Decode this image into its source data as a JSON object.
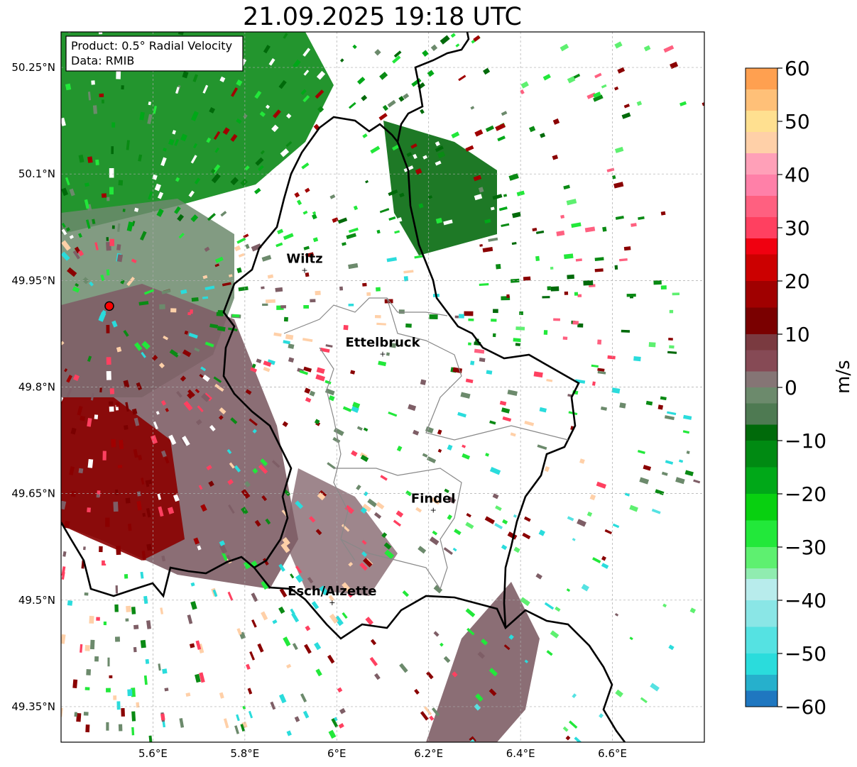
{
  "title": "21.09.2025 19:18 UTC",
  "info_box": {
    "product": "Product: 0.5° Radial Velocity",
    "data": "Data: RMIB"
  },
  "map": {
    "lon_range": [
      5.4,
      6.8
    ],
    "lat_range": [
      49.3,
      50.3
    ],
    "lat_ticks": [
      {
        "value": 50.25,
        "label": "50.25°N"
      },
      {
        "value": 50.1,
        "label": "50.1°N"
      },
      {
        "value": 49.95,
        "label": "49.95°N"
      },
      {
        "value": 49.8,
        "label": "49.8°N"
      },
      {
        "value": 49.65,
        "label": "49.65°N"
      },
      {
        "value": 49.5,
        "label": "49.5°N"
      },
      {
        "value": 49.35,
        "label": "49.35°N"
      }
    ],
    "lon_ticks": [
      {
        "value": 5.6,
        "label": "5.6°E"
      },
      {
        "value": 5.8,
        "label": "5.8°E"
      },
      {
        "value": 6.0,
        "label": "6°E"
      },
      {
        "value": 6.2,
        "label": "6.2°E"
      },
      {
        "value": 6.4,
        "label": "6.4°E"
      },
      {
        "value": 6.6,
        "label": "6.6°E"
      }
    ],
    "grid": true,
    "radar_site": {
      "lon": 5.505,
      "lat": 49.914
    },
    "cities": [
      {
        "name": "Wiltz",
        "lon": 5.93,
        "lat": 49.965
      },
      {
        "name": "Ettelbruck",
        "lon": 6.1,
        "lat": 49.847
      },
      {
        "name": "Findel",
        "lon": 6.21,
        "lat": 49.627
      },
      {
        "name": "Esch/Alzette",
        "lon": 5.99,
        "lat": 49.497
      }
    ]
  },
  "colorbar": {
    "min": -60,
    "max": 60,
    "ticks": [
      {
        "value": 60,
        "label": "60"
      },
      {
        "value": 50,
        "label": "50"
      },
      {
        "value": 40,
        "label": "40"
      },
      {
        "value": 30,
        "label": "30"
      },
      {
        "value": 20,
        "label": "20"
      },
      {
        "value": 10,
        "label": "10"
      },
      {
        "value": 0,
        "label": "0"
      },
      {
        "value": -10,
        "label": "−10"
      },
      {
        "value": -20,
        "label": "−20"
      },
      {
        "value": -30,
        "label": "−30"
      },
      {
        "value": -40,
        "label": "−40"
      },
      {
        "value": -50,
        "label": "−50"
      },
      {
        "value": -60,
        "label": "−60"
      }
    ],
    "unit": "m/s",
    "color_stops": [
      {
        "from": -60,
        "to": -57,
        "color": "#1f77c0"
      },
      {
        "from": -57,
        "to": -54,
        "color": "#26b0cc"
      },
      {
        "from": -54,
        "to": -50,
        "color": "#2adcdc"
      },
      {
        "from": -50,
        "to": -45,
        "color": "#55e2e2"
      },
      {
        "from": -45,
        "to": -40,
        "color": "#8ae6e6"
      },
      {
        "from": -40,
        "to": -36,
        "color": "#b8ecec"
      },
      {
        "from": -36,
        "to": -34,
        "color": "#90ecb0"
      },
      {
        "from": -34,
        "to": -30,
        "color": "#5ef070"
      },
      {
        "from": -30,
        "to": -25,
        "color": "#22e83a"
      },
      {
        "from": -25,
        "to": -20,
        "color": "#08d010"
      },
      {
        "from": -20,
        "to": -15,
        "color": "#00a818"
      },
      {
        "from": -15,
        "to": -10,
        "color": "#008a12"
      },
      {
        "from": -10,
        "to": -7,
        "color": "#006a0a"
      },
      {
        "from": -7,
        "to": -3,
        "color": "#4e7a52"
      },
      {
        "from": -3,
        "to": 0,
        "color": "#6c8a6c"
      },
      {
        "from": 0,
        "to": 3,
        "color": "#857575"
      },
      {
        "from": 3,
        "to": 7,
        "color": "#864a55"
      },
      {
        "from": 7,
        "to": 10,
        "color": "#7a3a40"
      },
      {
        "from": 10,
        "to": 15,
        "color": "#7a0000"
      },
      {
        "from": 15,
        "to": 20,
        "color": "#a00000"
      },
      {
        "from": 20,
        "to": 25,
        "color": "#cc0000"
      },
      {
        "from": 25,
        "to": 28,
        "color": "#f00010"
      },
      {
        "from": 28,
        "to": 32,
        "color": "#ff4060"
      },
      {
        "from": 32,
        "to": 36,
        "color": "#ff6080"
      },
      {
        "from": 36,
        "to": 40,
        "color": "#ff80a8"
      },
      {
        "from": 40,
        "to": 44,
        "color": "#ffa0b8"
      },
      {
        "from": 44,
        "to": 48,
        "color": "#ffd0a8"
      },
      {
        "from": 48,
        "to": 52,
        "color": "#ffe090"
      },
      {
        "from": 52,
        "to": 56,
        "color": "#ffc078"
      },
      {
        "from": 56,
        "to": 60,
        "color": "#ffa050"
      }
    ]
  },
  "echo_regions": [
    {
      "name": "red",
      "color": "#8a0000"
    },
    {
      "name": "mauve",
      "color": "#7e5e66"
    },
    {
      "name": "gray-green",
      "color": "#6c8a6c"
    },
    {
      "name": "green",
      "color": "#0a8a14"
    },
    {
      "name": "dark-green",
      "color": "#006a0a"
    }
  ]
}
